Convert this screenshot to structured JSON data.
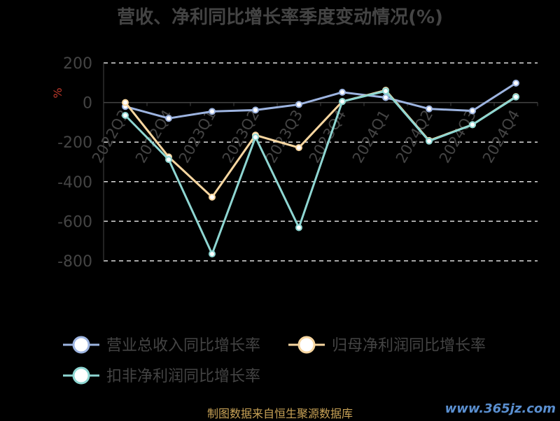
{
  "chart_data": {
    "type": "line",
    "title": "营收、净利同比增长率季度变动情况(%)",
    "ylabel": "%",
    "ylim": [
      -800,
      200
    ],
    "yticks": [
      200,
      0,
      -200,
      -400,
      -600,
      -800
    ],
    "grid": true,
    "legend_position": "bottom",
    "categories": [
      "2022Q3",
      "2022Q4",
      "2023Q1",
      "2023Q2",
      "2023Q3",
      "2023Q4",
      "2024Q1",
      "2024Q2",
      "2024Q3",
      "2024Q4"
    ],
    "series": [
      {
        "name": "营业总收入同比增长率",
        "color": "#9db4e0",
        "values": [
          -20,
          -80,
          -45,
          -38,
          -10,
          52,
          25,
          -32,
          -42,
          98
        ]
      },
      {
        "name": "归母净利润同比增长率",
        "color": "#f7d6a0",
        "values": [
          0,
          -275,
          -478,
          -165,
          -228,
          5,
          62,
          -192,
          -112,
          30
        ]
      },
      {
        "name": "扣非净利润同比增长率",
        "color": "#8ed6d2",
        "values": [
          -65,
          -288,
          -765,
          -175,
          -632,
          5,
          58,
          -195,
          -112,
          28
        ]
      }
    ]
  },
  "footer": "制图数据来自恒生聚源数据库",
  "watermark": "www.365jz.com"
}
